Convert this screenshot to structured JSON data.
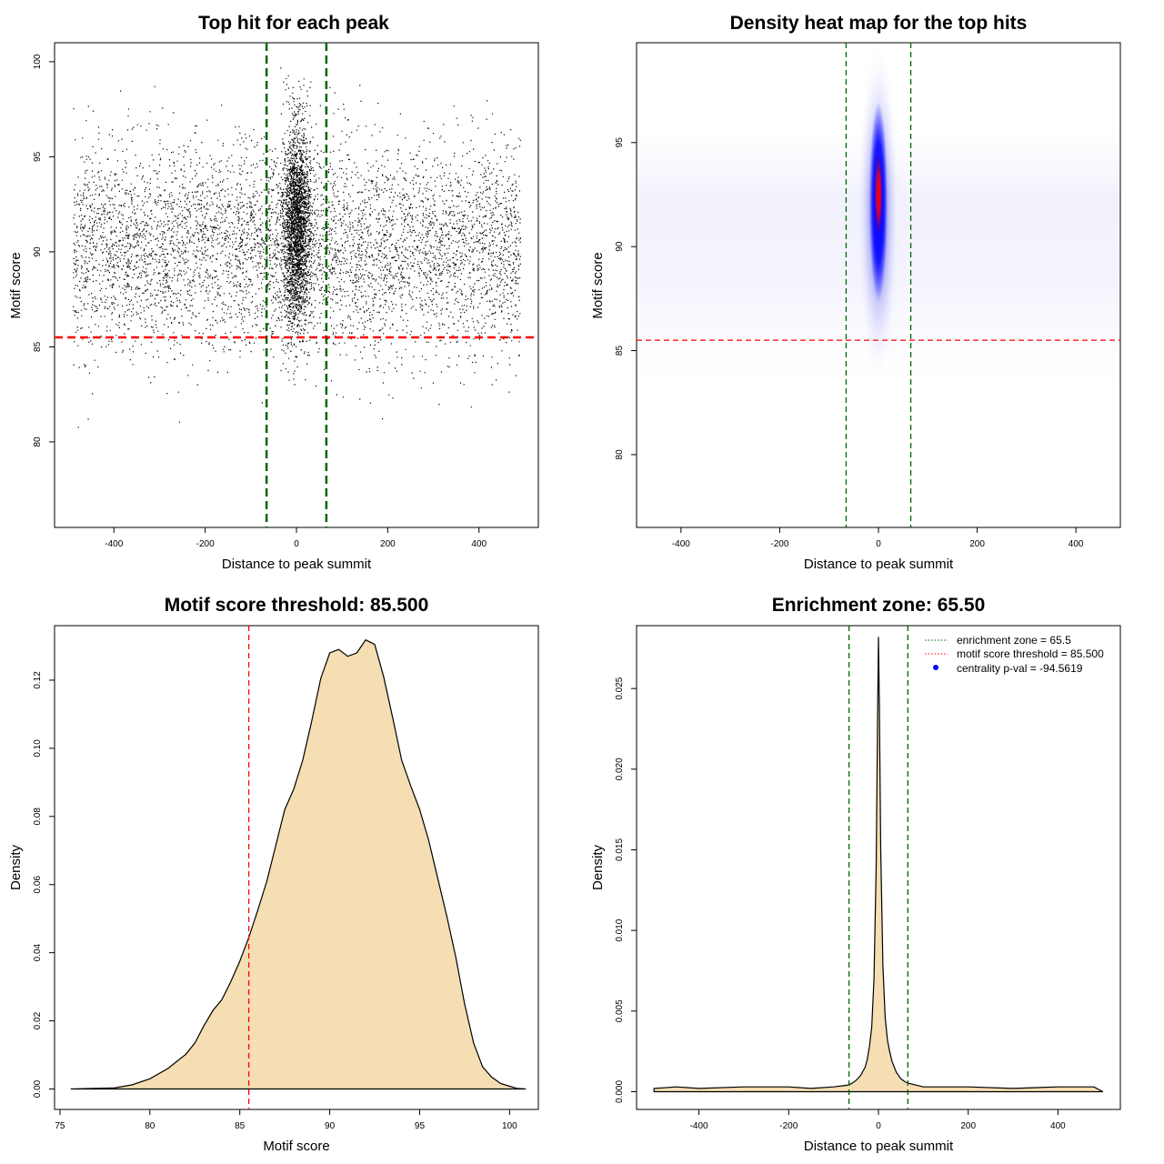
{
  "chart_data": [
    {
      "type": "scatter",
      "title": "Top hit for each peak",
      "xlabel": "Distance to peak summit",
      "ylabel": "Motif score",
      "xlim": [
        -530,
        530
      ],
      "ylim": [
        75.5,
        101
      ],
      "xticks": [
        -400,
        -200,
        0,
        200,
        400
      ],
      "yticks": [
        80,
        85,
        90,
        95,
        100
      ],
      "grid": false,
      "series": [
        {
          "points_description_summary": {
            "background_x_range": [
              -490,
              490
            ],
            "background_y_center": 90,
            "central_cluster_x_center": 0,
            "central_cluster_y_center": 91.5,
            "central_cluster_y_range": [
              83,
              100
            ]
          }
        }
      ],
      "vlines": [
        -65.5,
        65.5
      ],
      "vline_color": "#006400",
      "hline": 85.5,
      "hline_color": "#ff0000"
    },
    {
      "type": "heatmap",
      "title": "Density heat map for the top hits",
      "xlabel": "Distance to peak summit",
      "ylabel": "Motif score",
      "xlim": [
        -490,
        490
      ],
      "ylim": [
        76.5,
        99.8
      ],
      "xticks": [
        -400,
        -200,
        0,
        200,
        400
      ],
      "yticks": [
        80,
        85,
        90,
        95
      ],
      "grid": false,
      "hotspot": {
        "x": 0,
        "y": 92.5
      },
      "colors": [
        "#ffffff",
        "#0000ff",
        "#ff0000"
      ],
      "vlines": [
        -65.5,
        65.5
      ],
      "vline_color": "#006400",
      "hline": 85.5,
      "hline_color": "#ff0000"
    },
    {
      "type": "area",
      "title": "Motif score threshold: 85.500",
      "xlabel": "Motif score",
      "ylabel": "Density",
      "xlim": [
        74.7,
        101.6
      ],
      "ylim": [
        -0.006,
        0.136
      ],
      "xticks": [
        75,
        80,
        85,
        90,
        95,
        100
      ],
      "yticks": [
        0.0,
        0.02,
        0.04,
        0.06,
        0.08,
        0.1,
        0.12
      ],
      "ytick_labels": [
        "0.00",
        "0.02",
        "0.04",
        "0.06",
        "0.08",
        "0.10",
        "0.12"
      ],
      "grid": false,
      "fill_color": "#f5deb3",
      "x": [
        75.6,
        78,
        79,
        80,
        81,
        82,
        82.5,
        83,
        83.5,
        84,
        84.5,
        85,
        85.5,
        86,
        86.5,
        87,
        87.5,
        88,
        88.5,
        89,
        89.5,
        90,
        90.5,
        91,
        91.5,
        92,
        92.5,
        93,
        93.5,
        94,
        94.5,
        95,
        95.5,
        96,
        96.5,
        97,
        97.5,
        98,
        98.5,
        99,
        99.5,
        100,
        100.4,
        100.9
      ],
      "y": [
        0.0,
        0.0003,
        0.0012,
        0.003,
        0.006,
        0.0102,
        0.0135,
        0.0185,
        0.023,
        0.0262,
        0.0315,
        0.0375,
        0.0445,
        0.0525,
        0.061,
        0.0715,
        0.082,
        0.088,
        0.0965,
        0.108,
        0.1205,
        0.128,
        0.129,
        0.127,
        0.128,
        0.1318,
        0.1305,
        0.121,
        0.109,
        0.0965,
        0.089,
        0.082,
        0.073,
        0.062,
        0.051,
        0.039,
        0.025,
        0.0135,
        0.0065,
        0.0035,
        0.0016,
        0.0008,
        0.0002,
        0.0
      ],
      "vline": 85.5,
      "vline_color": "#ff0000"
    },
    {
      "type": "area",
      "title": "Enrichment zone: 65.50",
      "xlabel": "Distance to peak summit",
      "ylabel": "Density",
      "xlim": [
        -539,
        539
      ],
      "ylim": [
        -0.0011,
        0.0289
      ],
      "xticks": [
        -400,
        -200,
        0,
        200,
        400
      ],
      "yticks": [
        0.0,
        0.005,
        0.01,
        0.015,
        0.02,
        0.025
      ],
      "ytick_labels": [
        "0.000",
        "0.005",
        "0.010",
        "0.015",
        "0.020",
        "0.025"
      ],
      "grid": false,
      "fill_color": "#f5deb3",
      "x": [
        -500,
        -450,
        -400,
        -300,
        -200,
        -150,
        -100,
        -70,
        -60,
        -50,
        -40,
        -30,
        -25,
        -20,
        -15,
        -10,
        -5,
        -2,
        0,
        2,
        5,
        10,
        15,
        20,
        25,
        30,
        40,
        50,
        60,
        70,
        100,
        200,
        300,
        400,
        480,
        500
      ],
      "y": [
        0.0002,
        0.0003,
        0.0002,
        0.0003,
        0.0003,
        0.0002,
        0.0003,
        0.0004,
        0.0005,
        0.0007,
        0.001,
        0.0015,
        0.002,
        0.0028,
        0.004,
        0.007,
        0.014,
        0.023,
        0.0282,
        0.024,
        0.015,
        0.0078,
        0.0046,
        0.0032,
        0.0025,
        0.0019,
        0.0012,
        0.0008,
        0.0006,
        0.0005,
        0.0003,
        0.0003,
        0.0002,
        0.0003,
        0.0003,
        0.0
      ],
      "vlines": [
        -65.5,
        65.5
      ],
      "vline_color": "#006400",
      "legend": {
        "placement": "top-right",
        "entries": [
          {
            "label": "enrichment zone = 65.5",
            "symbol": "dotted-line",
            "color": "#006400"
          },
          {
            "label": "motif score threshold = 85.500",
            "symbol": "dotted-line",
            "color": "#ff0000"
          },
          {
            "label": "centrality p-val = -94.5619",
            "symbol": "dot",
            "color": "#0000ff"
          }
        ]
      }
    }
  ]
}
